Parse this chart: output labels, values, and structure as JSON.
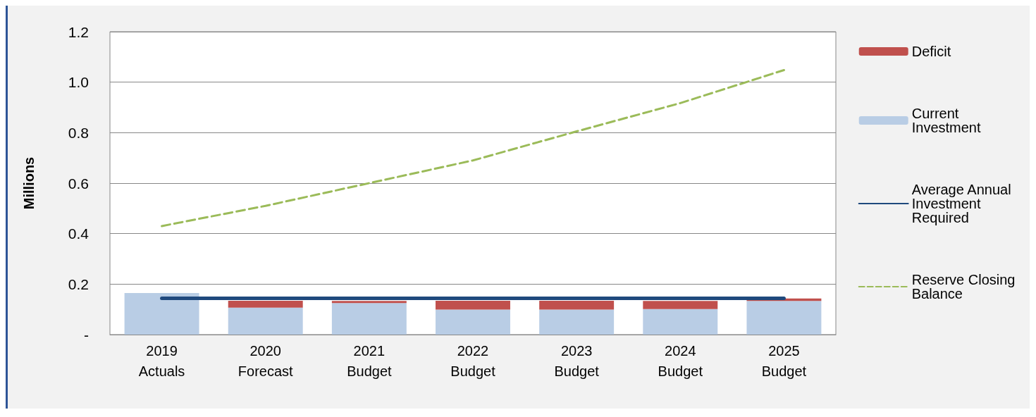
{
  "chart_data": {
    "type": "bar",
    "ylabel": "Millions",
    "categories": [
      "2019\nActuals",
      "2020\nForecast",
      "2021\nBudget",
      "2022\nBudget",
      "2023\nBudget",
      "2024\nBudget",
      "2025\nBudget"
    ],
    "stacked": true,
    "series": [
      {
        "name": "Current Investment",
        "color": "#b9cde5",
        "values": [
          0.165,
          0.107,
          0.125,
          0.099,
          0.099,
          0.101,
          0.133
        ]
      },
      {
        "name": "Deficit",
        "color": "#c0504d",
        "values": [
          0,
          0.027,
          0.008,
          0.035,
          0.035,
          0.032,
          0.01
        ]
      },
      {
        "name": "Average Annual Investment Required",
        "type": "line",
        "color": "#1f497d",
        "line_style": "solid",
        "values": [
          0.144,
          0.144,
          0.144,
          0.144,
          0.144,
          0.144,
          0.144
        ]
      },
      {
        "name": "Reserve Closing Balance",
        "type": "line",
        "color": "#9bbb59",
        "line_style": "dashed",
        "values": [
          0.43,
          0.51,
          0.6,
          0.69,
          0.805,
          0.917,
          1.048
        ]
      }
    ],
    "ylim": [
      0,
      1.2
    ],
    "yticks": [
      {
        "value": 0,
        "label": "-"
      },
      {
        "value": 0.2,
        "label": "0.2"
      },
      {
        "value": 0.4,
        "label": "0.4"
      },
      {
        "value": 0.6,
        "label": "0.6"
      },
      {
        "value": 0.8,
        "label": "0.8"
      },
      {
        "value": 1.0,
        "label": "1.0"
      },
      {
        "value": 1.2,
        "label": "1.2"
      }
    ],
    "grid": "y",
    "legend": "right",
    "marker": "none"
  }
}
